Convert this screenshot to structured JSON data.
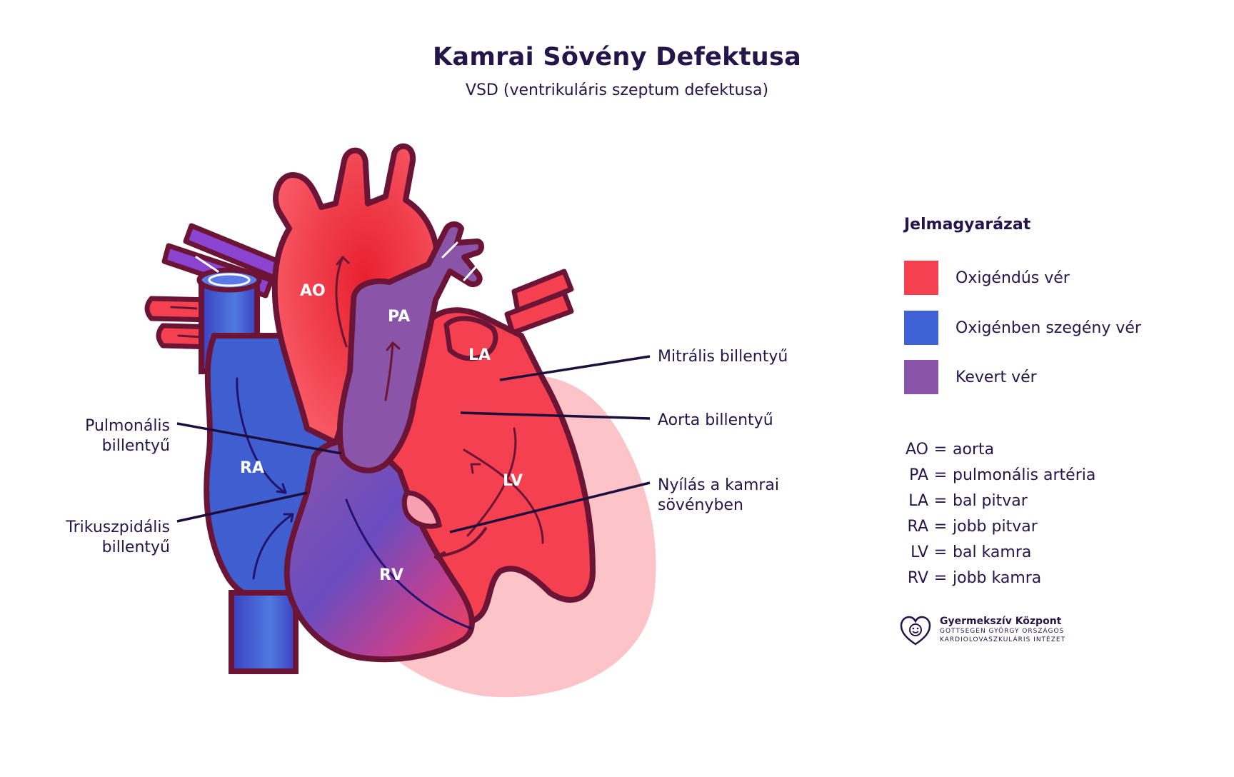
{
  "title": "Kamrai Sövény Defektusa",
  "subtitle": "VSD (ventrikuláris szeptum defektusa)",
  "chambers": {
    "ao": "AO",
    "pa": "PA",
    "la": "LA",
    "ra": "RA",
    "lv": "LV",
    "rv": "RV"
  },
  "callouts": {
    "mitral": "Mitrális billentyű",
    "aortic": "Aorta billentyű",
    "vsd_line1": "Nyílás a kamrai",
    "vsd_line2": "sövényben",
    "pulmonary_line1": "Pulmonális",
    "pulmonary_line2": "billentyű",
    "tricuspid_line1": "Trikuszpidális",
    "tricuspid_line2": "billentyű"
  },
  "legend": {
    "title": "Jelmagyarázat",
    "items": [
      {
        "label": "Oxigéndús vér",
        "color": "#f5414f"
      },
      {
        "label": "Oxigénben szegény vér",
        "color": "#3f63d6"
      },
      {
        "label": "Kevert vér",
        "color": "#8a55a8"
      }
    ]
  },
  "abbreviations": [
    {
      "key": "AO",
      "eq": "=",
      "value": "aorta"
    },
    {
      "key": "PA",
      "eq": "=",
      "value": "pulmonális artéria"
    },
    {
      "key": "LA",
      "eq": "=",
      "value": "bal pitvar"
    },
    {
      "key": "RA",
      "eq": "=",
      "value": "jobb pitvar"
    },
    {
      "key": "LV",
      "eq": "=",
      "value": "bal kamra"
    },
    {
      "key": "RV",
      "eq": "=",
      "value": "jobb kamra"
    }
  ],
  "logo": {
    "name": "Gyermekszív Központ",
    "sub_line1": "GOTTSEGEN GYÖRGY ORSZÁGOS",
    "sub_line2": "KARDIOLOVASZKULÁRIS INTÉZET",
    "icon": "heart-smiley-icon"
  },
  "colors": {
    "outline": "#6b1436",
    "oxygenated": "#f5414f",
    "deoxygenated": "#3f63d6",
    "mixed": "#8a55a8",
    "pericardium": "#fcc3c8",
    "text": "#24164a"
  }
}
